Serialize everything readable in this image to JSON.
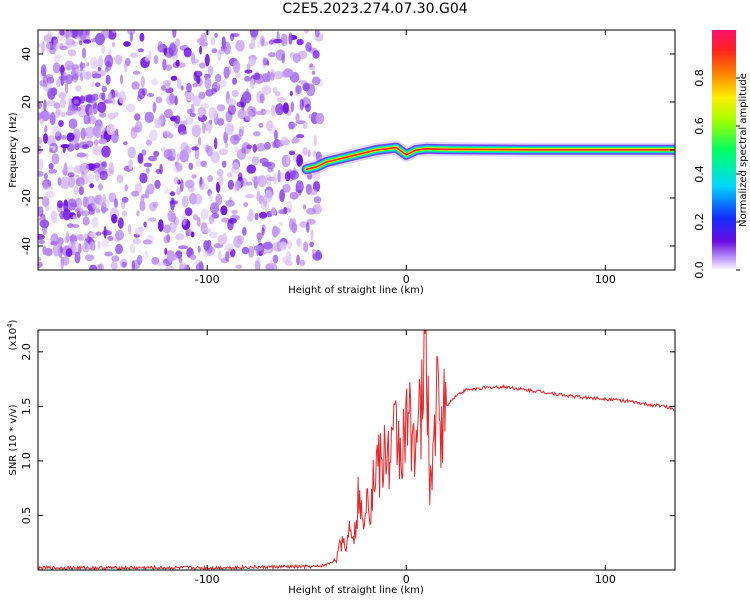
{
  "title": "C2E5.2023.274.07.30.G04",
  "colors": {
    "snr_line": "#e8262a",
    "frame": "#000000",
    "noise_dark": "#6a0ae0",
    "noise_light": "#c59af2",
    "track_core": "#ff2020"
  },
  "chart_data": [
    {
      "type": "heatmap",
      "title": "C2E5.2023.274.07.30.G04",
      "xlabel": "Height of straight line (km)",
      "ylabel": "Frequency (Hz)",
      "xlim": [
        -185,
        135
      ],
      "ylim": [
        -50,
        50
      ],
      "xticks": [
        -100,
        0,
        100
      ],
      "yticks": [
        -40,
        -20,
        0,
        20,
        40
      ],
      "noise_region_x": [
        -185,
        -43
      ],
      "track": {
        "x": [
          -50,
          -45,
          -40,
          -35,
          -30,
          -25,
          -20,
          -15,
          -10,
          -5,
          0,
          5,
          10,
          20,
          40,
          60,
          80,
          100,
          120,
          135
        ],
        "y": [
          -8,
          -7,
          -5,
          -4,
          -3,
          -2,
          -1,
          0,
          0.5,
          1,
          -2,
          0,
          0.5,
          0.3,
          0.2,
          0.1,
          0.1,
          0.1,
          0.1,
          0.1
        ]
      },
      "colorbar": {
        "label": "Normalized spectral amplitude",
        "range": [
          0,
          1
        ],
        "ticks": [
          "0.0",
          "0.2",
          "0.4",
          "0.6",
          "0.8"
        ]
      }
    },
    {
      "type": "line",
      "xlabel": "Height of straight line (km)",
      "ylabel": "SNR (10 * v/v)",
      "exponent_label": "(x10",
      "exponent_power": "4",
      "exponent_close": ")",
      "xlim": [
        -185,
        135
      ],
      "ylim": [
        0,
        2.2
      ],
      "xticks": [
        -100,
        0,
        100
      ],
      "yticks": [
        "0.5",
        "1.0",
        "1.5",
        "2.0"
      ],
      "series": [
        {
          "x": [
            -185,
            -150,
            -100,
            -60,
            -45,
            -40,
            -35,
            -32,
            -30,
            -28,
            -26,
            -24,
            -22,
            -20,
            -18,
            -15,
            -12,
            -10,
            -8,
            -5,
            -3,
            0,
            3,
            5,
            8,
            10,
            12,
            15,
            18,
            20,
            25,
            30,
            40,
            50,
            60,
            70,
            80,
            90,
            100,
            110,
            120,
            130,
            135
          ],
          "y": [
            0.02,
            0.02,
            0.02,
            0.03,
            0.03,
            0.05,
            0.1,
            0.3,
            0.2,
            0.5,
            0.3,
            0.7,
            0.4,
            0.8,
            0.6,
            1.0,
            0.9,
            1.15,
            1.0,
            1.3,
            1.1,
            1.25,
            1.4,
            1.2,
            1.5,
            2.2,
            0.65,
            1.55,
            1.35,
            1.5,
            1.6,
            1.65,
            1.67,
            1.68,
            1.65,
            1.63,
            1.6,
            1.58,
            1.57,
            1.55,
            1.52,
            1.5,
            1.47
          ]
        }
      ]
    }
  ]
}
